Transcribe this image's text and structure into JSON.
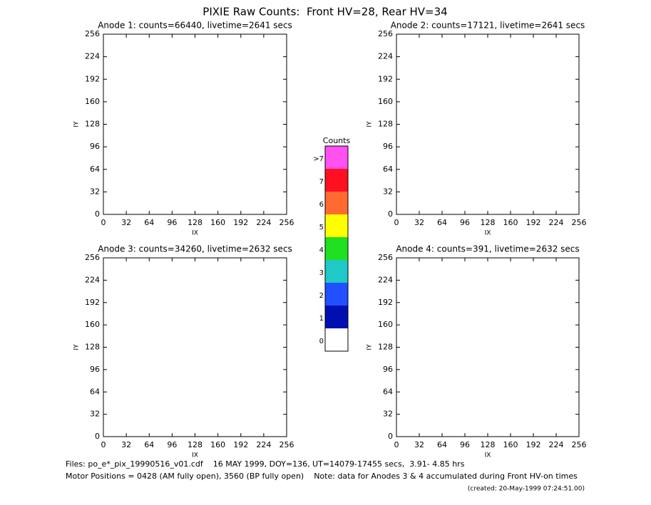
{
  "title": "PIXIE Raw Counts:  Front HV=28, Rear HV=34",
  "chart_data": [
    {
      "type": "heatmap",
      "title": "Anode 1: counts=66440, livetime=2641 secs",
      "xlabel": "IX",
      "ylabel": "IY",
      "xlim": [
        0,
        256
      ],
      "xticks": [
        0,
        32,
        64,
        96,
        128,
        160,
        192,
        224,
        256
      ],
      "ylim": [
        0,
        256
      ],
      "yticks": [
        0,
        32,
        64,
        96,
        128,
        160,
        192,
        224,
        256
      ]
    },
    {
      "type": "heatmap",
      "title": "Anode 2: counts=17121, livetime=2641 secs",
      "xlabel": "IX",
      "ylabel": "IY",
      "xlim": [
        0,
        256
      ],
      "xticks": [
        0,
        32,
        64,
        96,
        128,
        160,
        192,
        224,
        256
      ],
      "ylim": [
        0,
        256
      ],
      "yticks": [
        0,
        32,
        64,
        96,
        128,
        160,
        192,
        224,
        256
      ]
    },
    {
      "type": "heatmap",
      "title": "Anode 3: counts=34260, livetime=2632 secs",
      "xlabel": "IX",
      "ylabel": "IY",
      "xlim": [
        0,
        256
      ],
      "xticks": [
        0,
        32,
        64,
        96,
        128,
        160,
        192,
        224,
        256
      ],
      "ylim": [
        0,
        256
      ],
      "yticks": [
        0,
        32,
        64,
        96,
        128,
        160,
        192,
        224,
        256
      ]
    },
    {
      "type": "heatmap",
      "title": "Anode 4: counts=391, livetime=2632 secs",
      "xlabel": "IX",
      "ylabel": "IY",
      "xlim": [
        0,
        256
      ],
      "xticks": [
        0,
        32,
        64,
        96,
        128,
        160,
        192,
        224,
        256
      ],
      "ylim": [
        0,
        256
      ],
      "yticks": [
        0,
        32,
        64,
        96,
        128,
        160,
        192,
        224,
        256
      ]
    }
  ],
  "colorbar": {
    "title": "Counts",
    "labels": [
      "0",
      "1",
      "2",
      "3",
      "4",
      "5",
      "6",
      "7",
      ">7"
    ],
    "colors": [
      "#ffffff",
      "#0010b0",
      "#2050ff",
      "#20c8c8",
      "#20e020",
      "#ffff00",
      "#ff6a30",
      "#ff1020",
      "#ff50f0"
    ]
  },
  "footer": [
    "Files: po_e*_pix_19990516_v01.cdf    16 MAY 1999, DOY=136, UT=14079-17455 secs,  3.91- 4.85 hrs",
    "Motor Positions = 0428 (AM fully open), 3560 (BP fully open)    Note: data for Anodes 3 & 4 accumulated during Front HV-on times",
    "(created: 20-May-1999 07:24:51.00)"
  ]
}
